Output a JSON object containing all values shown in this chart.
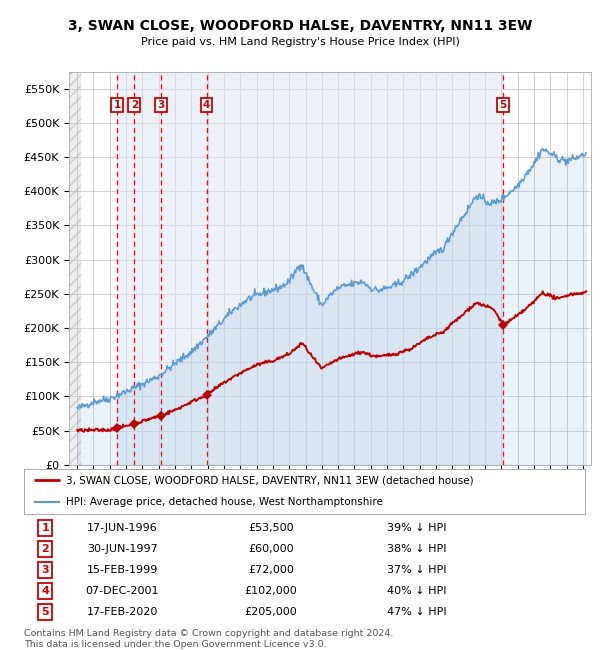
{
  "title1": "3, SWAN CLOSE, WOODFORD HALSE, DAVENTRY, NN11 3EW",
  "title2": "Price paid vs. HM Land Registry's House Price Index (HPI)",
  "purchases": [
    {
      "num": 1,
      "date": "17-JUN-1996",
      "year": 1996.46,
      "price": 53500,
      "pct": "39%"
    },
    {
      "num": 2,
      "date": "30-JUN-1997",
      "year": 1997.5,
      "price": 60000,
      "pct": "38%"
    },
    {
      "num": 3,
      "date": "15-FEB-1999",
      "year": 1999.12,
      "price": 72000,
      "pct": "37%"
    },
    {
      "num": 4,
      "date": "07-DEC-2001",
      "year": 2001.93,
      "price": 102000,
      "pct": "40%"
    },
    {
      "num": 5,
      "date": "17-FEB-2020",
      "year": 2020.12,
      "price": 205000,
      "pct": "47%"
    }
  ],
  "hpi_line_color": "#5b9bd5",
  "price_line_color": "#c00000",
  "marker_color": "#c00000",
  "vline_color": "#ff0000",
  "shade_color": "#dce6f1",
  "grid_color": "#c0c0c0",
  "background_color": "#ffffff",
  "ylim": [
    0,
    575000
  ],
  "yticks": [
    0,
    50000,
    100000,
    150000,
    200000,
    250000,
    300000,
    350000,
    400000,
    450000,
    500000,
    550000
  ],
  "xlim_start": 1993.5,
  "xlim_end": 2025.5,
  "legend_line1": "3, SWAN CLOSE, WOODFORD HALSE, DAVENTRY, NN11 3EW (detached house)",
  "legend_line2": "HPI: Average price, detached house, West Northamptonshire",
  "footer": "Contains HM Land Registry data © Crown copyright and database right 2024.\nThis data is licensed under the Open Government Licence v3.0.",
  "hpi_anchors": [
    [
      1994.0,
      82000
    ],
    [
      1995.0,
      92000
    ],
    [
      1996.0,
      97000
    ],
    [
      1997.0,
      107000
    ],
    [
      1998.0,
      118000
    ],
    [
      1999.0,
      130000
    ],
    [
      2000.0,
      148000
    ],
    [
      2001.0,
      165000
    ],
    [
      2002.0,
      188000
    ],
    [
      2002.5,
      200000
    ],
    [
      2003.5,
      225000
    ],
    [
      2004.5,
      243000
    ],
    [
      2005.5,
      252000
    ],
    [
      2006.5,
      260000
    ],
    [
      2007.0,
      268000
    ],
    [
      2007.7,
      295000
    ],
    [
      2008.5,
      255000
    ],
    [
      2009.0,
      233000
    ],
    [
      2009.5,
      248000
    ],
    [
      2010.0,
      258000
    ],
    [
      2010.5,
      262000
    ],
    [
      2011.5,
      268000
    ],
    [
      2012.0,
      258000
    ],
    [
      2012.5,
      255000
    ],
    [
      2013.5,
      262000
    ],
    [
      2014.5,
      278000
    ],
    [
      2015.5,
      300000
    ],
    [
      2016.5,
      318000
    ],
    [
      2017.0,
      340000
    ],
    [
      2017.5,
      358000
    ],
    [
      2018.0,
      375000
    ],
    [
      2018.5,
      395000
    ],
    [
      2019.0,
      385000
    ],
    [
      2019.5,
      382000
    ],
    [
      2020.0,
      388000
    ],
    [
      2020.5,
      398000
    ],
    [
      2021.0,
      408000
    ],
    [
      2021.5,
      425000
    ],
    [
      2022.0,
      440000
    ],
    [
      2022.5,
      462000
    ],
    [
      2023.0,
      455000
    ],
    [
      2023.5,
      448000
    ],
    [
      2024.0,
      444000
    ],
    [
      2024.5,
      448000
    ],
    [
      2025.2,
      455000
    ]
  ],
  "price_anchors": [
    [
      1994.0,
      50000
    ],
    [
      1995.0,
      50500
    ],
    [
      1996.0,
      51000
    ],
    [
      1996.46,
      53500
    ],
    [
      1997.5,
      60000
    ],
    [
      1999.12,
      72000
    ],
    [
      2000.0,
      80000
    ],
    [
      2001.0,
      92000
    ],
    [
      2001.93,
      102000
    ],
    [
      2003.0,
      120000
    ],
    [
      2004.0,
      134000
    ],
    [
      2005.0,
      146000
    ],
    [
      2006.0,
      152000
    ],
    [
      2007.0,
      162000
    ],
    [
      2007.8,
      178000
    ],
    [
      2008.5,
      155000
    ],
    [
      2009.0,
      140000
    ],
    [
      2009.5,
      148000
    ],
    [
      2010.0,
      154000
    ],
    [
      2011.0,
      162000
    ],
    [
      2011.5,
      165000
    ],
    [
      2012.0,
      160000
    ],
    [
      2012.5,
      158000
    ],
    [
      2013.5,
      162000
    ],
    [
      2014.5,
      170000
    ],
    [
      2015.5,
      185000
    ],
    [
      2016.5,
      195000
    ],
    [
      2017.0,
      207000
    ],
    [
      2017.5,
      216000
    ],
    [
      2018.0,
      228000
    ],
    [
      2018.5,
      237000
    ],
    [
      2019.0,
      232000
    ],
    [
      2019.5,
      228000
    ],
    [
      2020.12,
      205000
    ],
    [
      2020.5,
      210000
    ],
    [
      2021.0,
      218000
    ],
    [
      2021.5,
      228000
    ],
    [
      2022.0,
      238000
    ],
    [
      2022.5,
      252000
    ],
    [
      2023.0,
      247000
    ],
    [
      2023.5,
      242000
    ],
    [
      2024.0,
      248000
    ],
    [
      2024.5,
      250000
    ],
    [
      2025.2,
      252000
    ]
  ]
}
